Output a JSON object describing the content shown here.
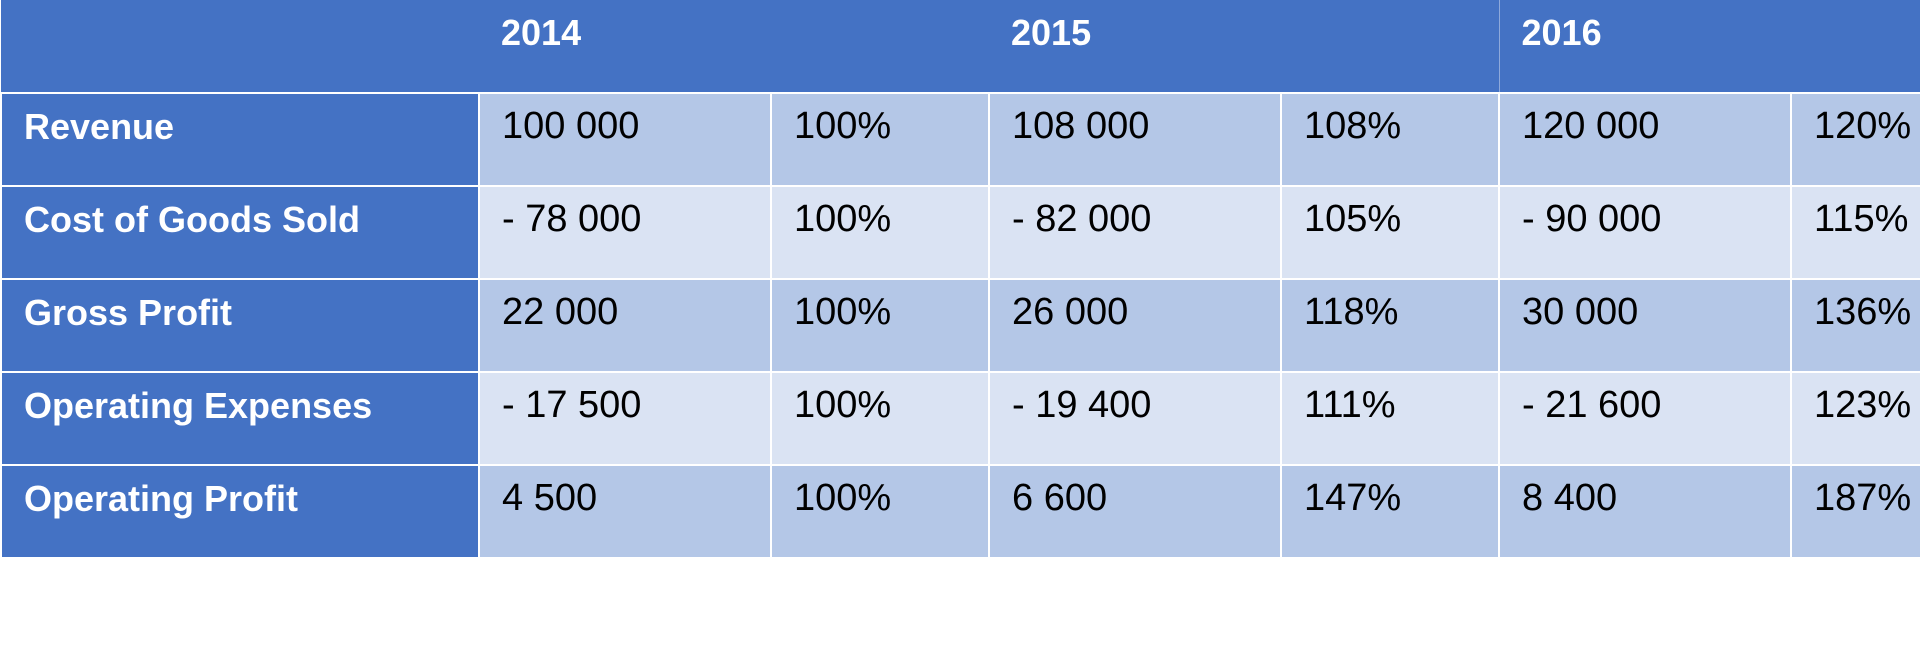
{
  "header": {
    "years": [
      "2014",
      "2015",
      "2016"
    ]
  },
  "rows": [
    {
      "label": "Revenue",
      "values": [
        "100 000",
        "100%",
        "108 000",
        "108%",
        "120 000",
        "120%"
      ]
    },
    {
      "label": "Cost of Goods Sold",
      "values": [
        "- 78 000",
        "100%",
        "- 82 000",
        "105%",
        "- 90 000",
        "115%"
      ]
    },
    {
      "label": "Gross Profit",
      "values": [
        "22 000",
        "100%",
        "26 000",
        "118%",
        "30 000",
        "136%"
      ]
    },
    {
      "label": "Operating Expenses",
      "values": [
        "- 17 500",
        "100%",
        "- 19 400",
        "111%",
        "- 21 600",
        "123%"
      ]
    },
    {
      "label": "Operating Profit",
      "values": [
        "4 500",
        "100%",
        "6 600",
        "147%",
        "8 400",
        "187%"
      ]
    }
  ],
  "colors": {
    "header_bg": "#4472c4",
    "row_dark": "#b4c7e7",
    "row_light": "#dae3f3",
    "header_text": "#ffffff"
  }
}
